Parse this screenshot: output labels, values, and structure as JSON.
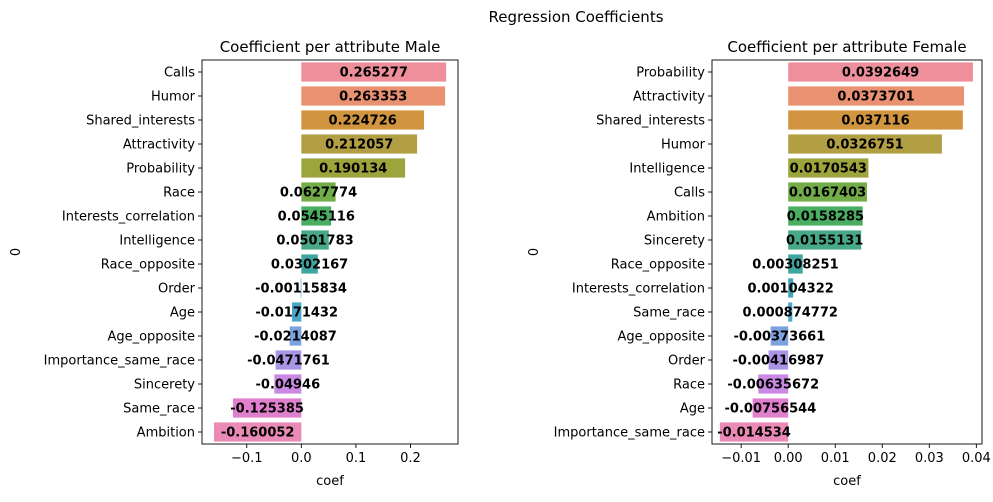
{
  "figure": {
    "suptitle": "Regression Coefficients"
  },
  "chart_data": [
    {
      "type": "bar",
      "orientation": "horizontal",
      "title": "Coefficient per attribute Male",
      "xlabel": "coef",
      "ylabel": "0",
      "xlim": [
        -0.182,
        0.287
      ],
      "xticks": [
        -0.1,
        0.0,
        0.1,
        0.2
      ],
      "xtick_labels": [
        "−0.1",
        "0.0",
        "0.1",
        "0.2"
      ],
      "grid": false,
      "categories": [
        "Calls",
        "Humor",
        "Shared_interests",
        "Attractivity",
        "Probability",
        "Race",
        "Interests_correlation",
        "Intelligence",
        "Race_opposite",
        "Order",
        "Age",
        "Age_opposite",
        "Importance_same_race",
        "Sincerety",
        "Same_race",
        "Ambition"
      ],
      "values": [
        0.265277,
        0.263353,
        0.224726,
        0.212057,
        0.190134,
        0.0627774,
        0.0545116,
        0.0501783,
        0.0302167,
        -0.00115834,
        -0.0171432,
        -0.0214087,
        -0.0471761,
        -0.04946,
        -0.125385,
        -0.160052
      ],
      "value_labels": [
        "0.265277",
        "0.263353",
        "0.224726",
        "0.212057",
        "0.190134",
        "0.0627774",
        "0.0545116",
        "0.0501783",
        "0.0302167",
        "-0.00115834",
        "-0.0171432",
        "-0.0214087",
        "-0.0471761",
        "-0.04946",
        "-0.125385",
        "-0.160052"
      ]
    },
    {
      "type": "bar",
      "orientation": "horizontal",
      "title": "Coefficient per attribute Female",
      "xlabel": "coef",
      "ylabel": "0",
      "xlim": [
        -0.0162,
        0.0412
      ],
      "xticks": [
        -0.01,
        0.0,
        0.01,
        0.02,
        0.03,
        0.04
      ],
      "xtick_labels": [
        "−0.01",
        "0.00",
        "0.01",
        "0.02",
        "0.03",
        "0.04"
      ],
      "grid": false,
      "categories": [
        "Probability",
        "Attractivity",
        "Shared_interests",
        "Humor",
        "Intelligence",
        "Calls",
        "Ambition",
        "Sincerety",
        "Race_opposite",
        "Interests_correlation",
        "Same_race",
        "Age_opposite",
        "Order",
        "Race",
        "Age",
        "Importance_same_race"
      ],
      "values": [
        0.0392649,
        0.0373701,
        0.037116,
        0.0326751,
        0.0170543,
        0.0167403,
        0.0158285,
        0.0155131,
        0.00308251,
        0.00104322,
        0.000874772,
        -0.00373661,
        -0.00416987,
        -0.00635672,
        -0.00756544,
        -0.014534
      ],
      "value_labels": [
        "0.0392649",
        "0.0373701",
        "0.037116",
        "0.0326751",
        "0.0170543",
        "0.0167403",
        "0.0158285",
        "0.0155131",
        "0.00308251",
        "0.00104322",
        "0.000874772",
        "-0.00373661",
        "-0.00416987",
        "-0.00635672",
        "-0.00756544",
        "-0.014534"
      ]
    }
  ],
  "colors": [
    "#ee8f9b",
    "#e99170",
    "#d1953f",
    "#b29e43",
    "#9ca43c",
    "#73ad49",
    "#4aae62",
    "#48a989",
    "#3ea6a0",
    "#3ea5b4",
    "#4ba6cc",
    "#7ea2e0",
    "#aa94e6",
    "#cc89e4",
    "#e07fcd",
    "#eb8ab6"
  ]
}
